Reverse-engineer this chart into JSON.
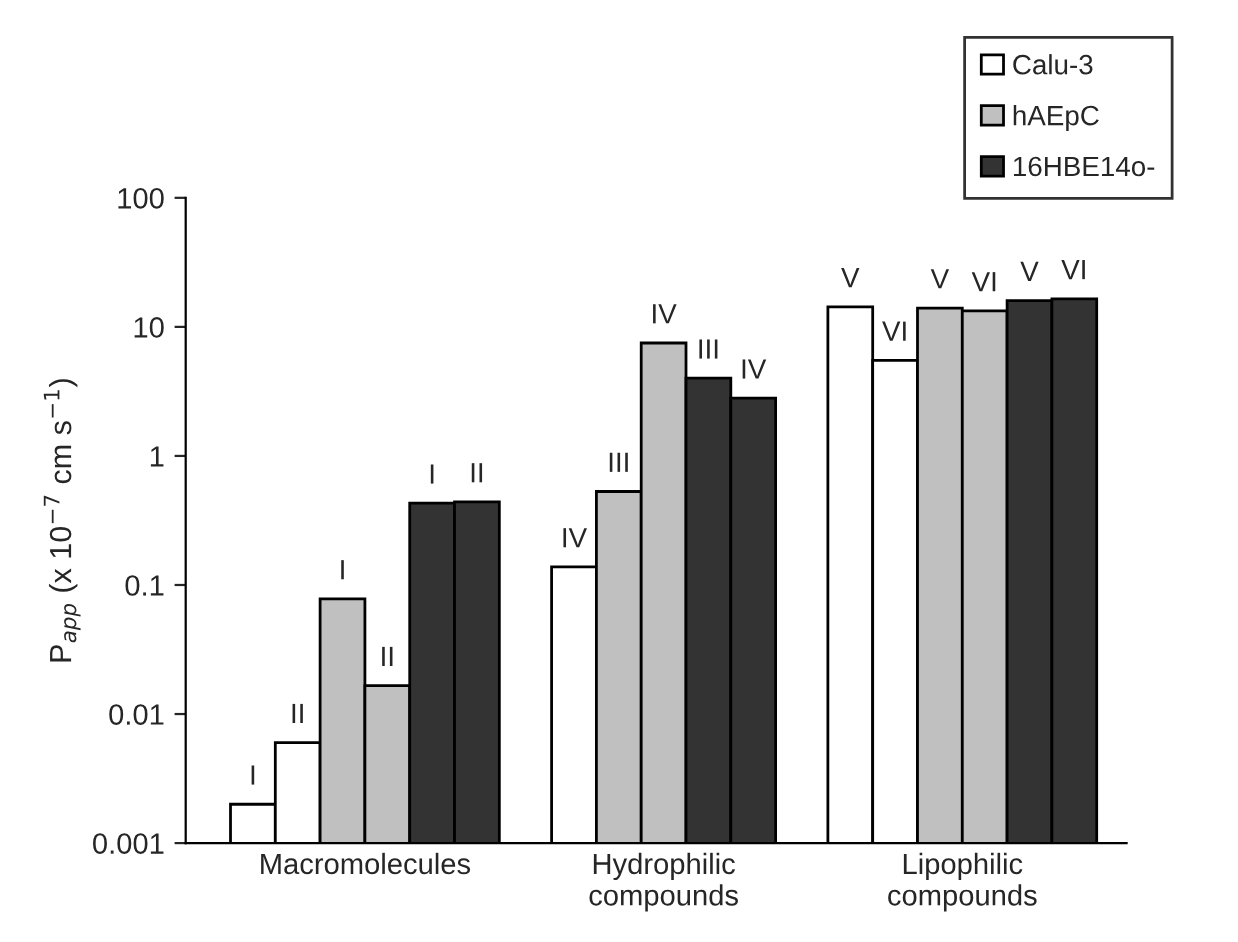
{
  "chart_data": {
    "type": "bar",
    "ylabel": "P$_{app}$ (x 10$^{−7}$ cm s$^{−1}$)",
    "categories": [
      "Macromolecules",
      "Hydrophilic\ncompounds",
      "Lipophilic\ncompounds"
    ],
    "log": true,
    "ylim": [
      0.001,
      100
    ],
    "yticks": [
      0.001,
      0.01,
      0.1,
      1,
      10,
      100
    ],
    "grid": false,
    "legend": "top right",
    "series": [
      {
        "name": "Calu-3",
        "color": "#ffffff",
        "values": [
          0.002,
          0.138,
          14.3
        ],
        "value_labels": [
          "I",
          "IV",
          "V"
        ]
      },
      {
        "color": "#ffffff",
        "values": [
          0.006,
          null,
          5.5
        ],
        "value_labels": [
          "II",
          null,
          "VI"
        ]
      },
      {
        "name": "hAEpC",
        "color": "#c0c0c0",
        "values": [
          0.078,
          0.53,
          14
        ],
        "value_labels": [
          "I",
          "III",
          "V"
        ]
      },
      {
        "color": "#c0c0c0",
        "values": [
          0.0166,
          7.5,
          13.3
        ],
        "value_labels": [
          "II",
          "IV",
          "VI"
        ]
      },
      {
        "name": "16HBE14o-",
        "color": "#333333",
        "values": [
          0.43,
          4.0,
          16
        ],
        "value_labels": [
          "I",
          "III",
          "V"
        ]
      },
      {
        "color": "#333333",
        "values": [
          0.44,
          2.8,
          16.5
        ],
        "value_labels": [
          "II",
          "IV",
          "VI"
        ]
      }
    ]
  }
}
